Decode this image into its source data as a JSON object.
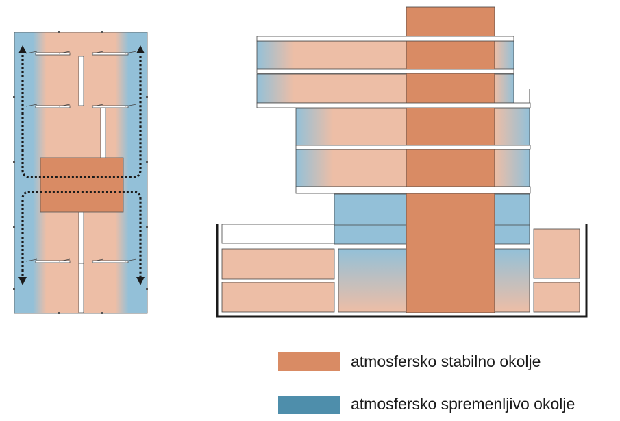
{
  "colors": {
    "stable": "#d98b64",
    "light": "#edbea6",
    "variable": "#93c0d8",
    "legend_variable": "#4e8eab",
    "frame": "#1a1a1a"
  },
  "legend": {
    "stable_label": "atmosfersko stabilno okolje",
    "variable_label": "atmosfersko spremenljivo okolje"
  }
}
